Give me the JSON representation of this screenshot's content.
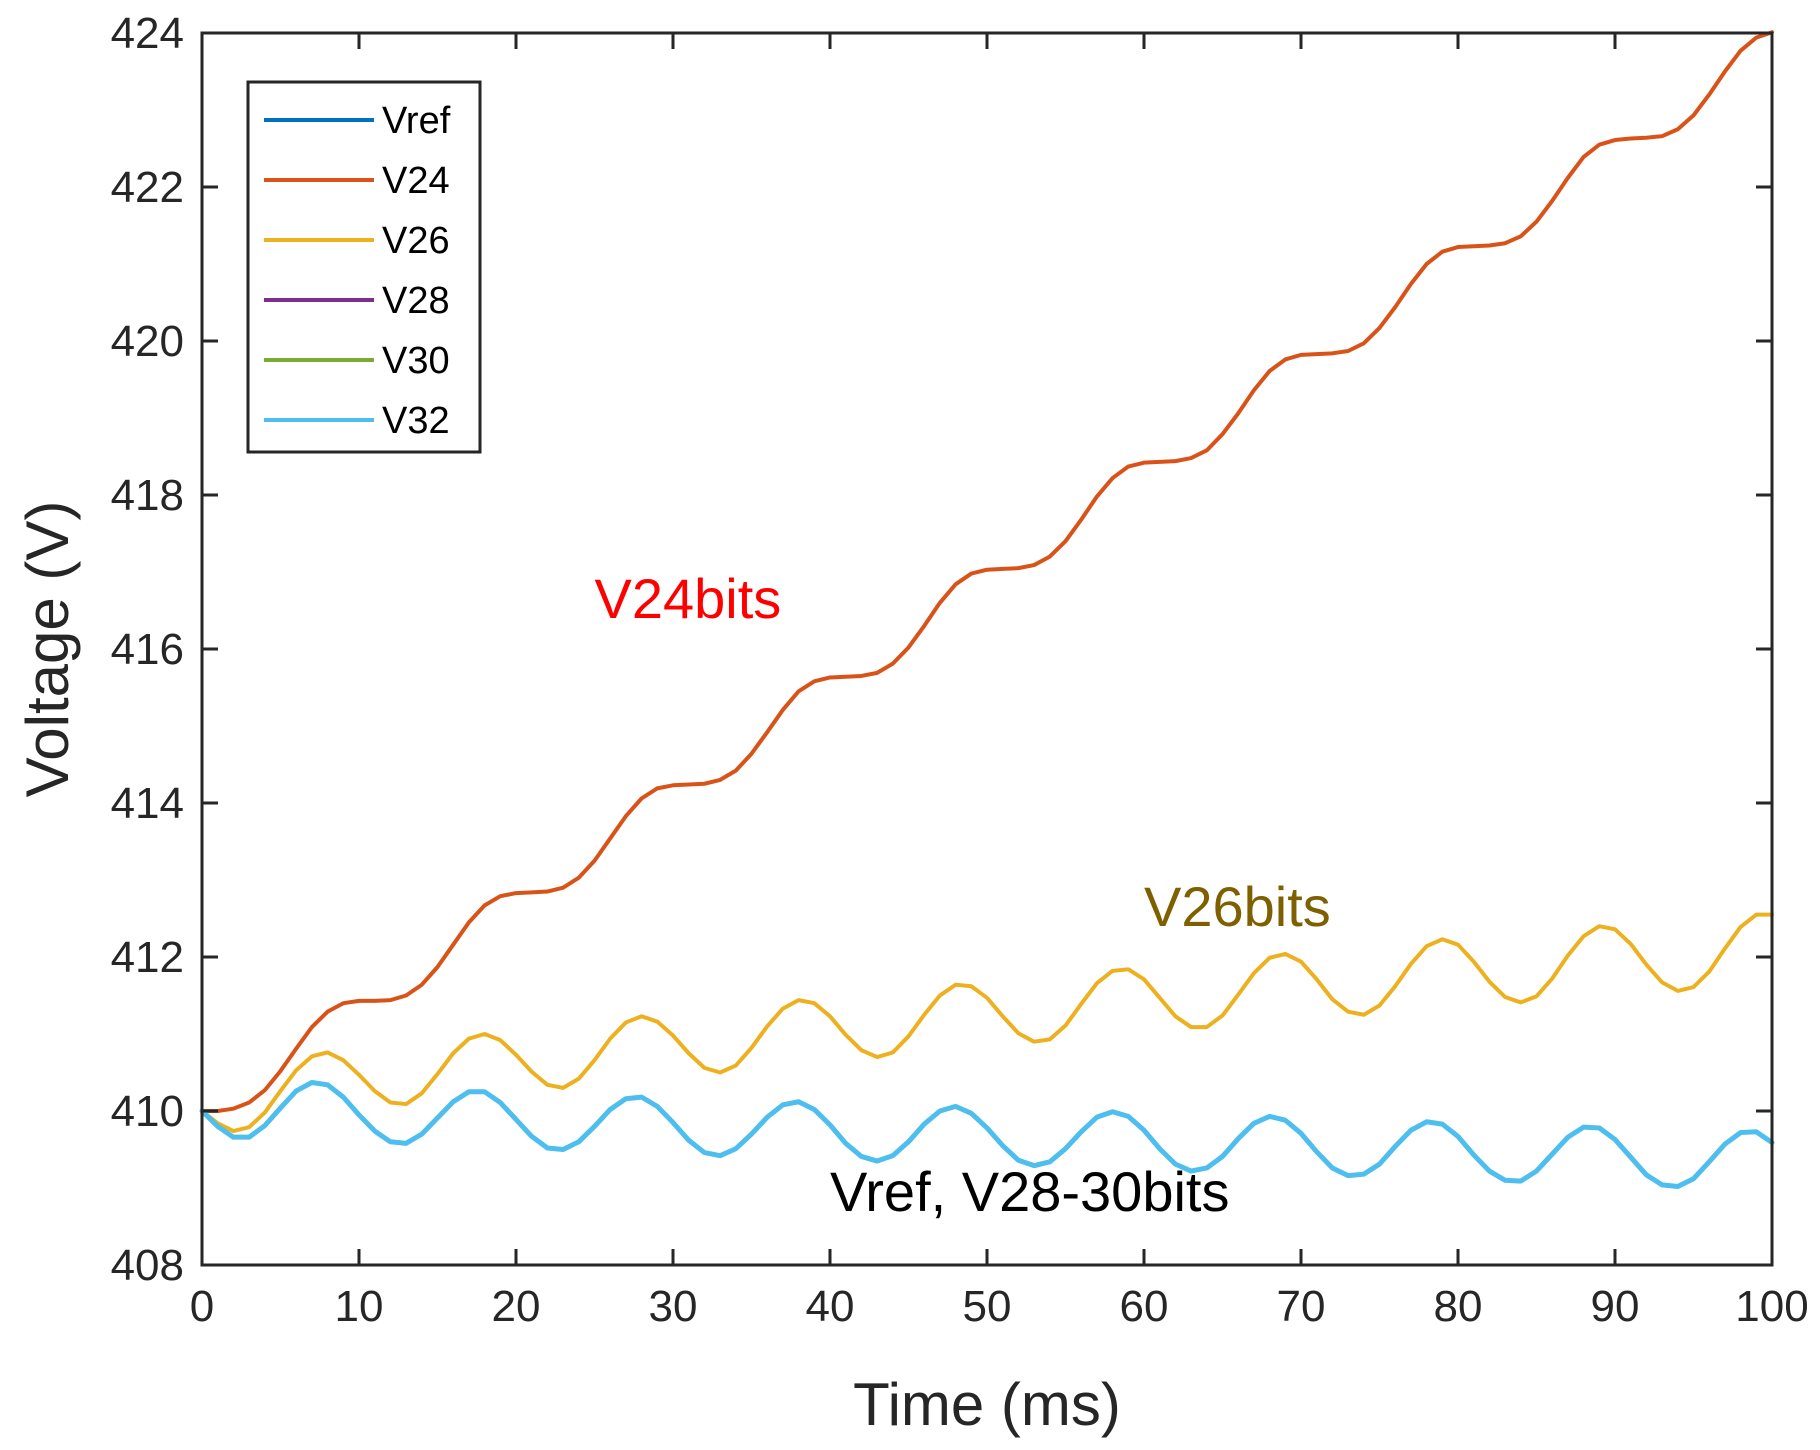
{
  "chart_data": {
    "type": "line",
    "title": "",
    "xlabel": "Time (ms)",
    "ylabel": "Voltage (V)",
    "xlim": [
      0,
      100
    ],
    "ylim": [
      408,
      424
    ],
    "xticks": [
      0,
      10,
      20,
      30,
      40,
      50,
      60,
      70,
      80,
      90,
      100
    ],
    "yticks": [
      408,
      410,
      412,
      414,
      416,
      418,
      420,
      422,
      424
    ],
    "grid": false,
    "legend_position": "top-left",
    "x": [
      0,
      1,
      2,
      3,
      4,
      5,
      6,
      7,
      8,
      9,
      10,
      11,
      12,
      13,
      14,
      15,
      16,
      17,
      18,
      19,
      20,
      21,
      22,
      23,
      24,
      25,
      26,
      27,
      28,
      29,
      30,
      31,
      32,
      33,
      34,
      35,
      36,
      37,
      38,
      39,
      40,
      41,
      42,
      43,
      44,
      45,
      46,
      47,
      48,
      49,
      50,
      51,
      52,
      53,
      54,
      55,
      56,
      57,
      58,
      59,
      60,
      61,
      62,
      63,
      64,
      65,
      66,
      67,
      68,
      69,
      70,
      71,
      72,
      73,
      74,
      75,
      76,
      77,
      78,
      79,
      80,
      81,
      82,
      83,
      84,
      85,
      86,
      87,
      88,
      89,
      90,
      91,
      92,
      93,
      94,
      95,
      96,
      97,
      98,
      99,
      100
    ],
    "series": [
      {
        "name": "Vref",
        "color": "#0072BD",
        "values": [
          410.0,
          409.8,
          409.66,
          409.66,
          409.81,
          410.04,
          410.26,
          410.37,
          410.34,
          410.18,
          409.95,
          409.74,
          409.6,
          409.58,
          409.7,
          409.91,
          410.12,
          410.25,
          410.25,
          410.11,
          409.89,
          409.67,
          409.52,
          409.5,
          409.6,
          409.8,
          410.02,
          410.16,
          410.18,
          410.06,
          409.85,
          409.62,
          409.46,
          409.42,
          409.51,
          409.7,
          409.92,
          410.08,
          410.12,
          410.02,
          409.82,
          409.58,
          409.41,
          409.35,
          409.42,
          409.6,
          409.83,
          410.0,
          410.06,
          409.97,
          409.78,
          409.55,
          409.36,
          409.29,
          409.34,
          409.51,
          409.73,
          409.92,
          409.99,
          409.93,
          409.75,
          409.51,
          409.31,
          409.22,
          409.26,
          409.41,
          409.64,
          409.84,
          409.93,
          409.88,
          409.71,
          409.47,
          409.26,
          409.16,
          409.18,
          409.31,
          409.54,
          409.75,
          409.86,
          409.83,
          409.67,
          409.43,
          409.22,
          409.1,
          409.09,
          409.22,
          409.44,
          409.66,
          409.79,
          409.78,
          409.63,
          409.4,
          409.17,
          409.04,
          409.02,
          409.12,
          409.34,
          409.57,
          409.72,
          409.73,
          409.59
        ]
      },
      {
        "name": "V24",
        "color": "#D95319",
        "values": [
          410.0,
          410.0,
          410.03,
          410.11,
          410.27,
          410.52,
          410.81,
          411.09,
          411.29,
          411.4,
          411.43,
          411.43,
          411.44,
          411.5,
          411.64,
          411.87,
          412.16,
          412.45,
          412.67,
          412.79,
          412.83,
          412.84,
          412.85,
          412.9,
          413.03,
          413.25,
          413.54,
          413.83,
          414.06,
          414.19,
          414.23,
          414.24,
          414.25,
          414.3,
          414.42,
          414.64,
          414.92,
          415.21,
          415.45,
          415.58,
          415.63,
          415.64,
          415.65,
          415.69,
          415.81,
          416.02,
          416.3,
          416.6,
          416.84,
          416.98,
          417.03,
          417.04,
          417.05,
          417.09,
          417.2,
          417.4,
          417.68,
          417.98,
          418.22,
          418.37,
          418.42,
          418.43,
          418.44,
          418.48,
          418.58,
          418.79,
          419.06,
          419.36,
          419.61,
          419.76,
          419.82,
          419.83,
          419.84,
          419.87,
          419.97,
          420.17,
          420.44,
          420.74,
          421.0,
          421.16,
          421.22,
          421.23,
          421.24,
          421.27,
          421.36,
          421.55,
          421.82,
          422.12,
          422.39,
          422.55,
          422.61,
          422.63,
          422.64,
          422.66,
          422.75,
          422.93,
          423.2,
          423.5,
          423.77,
          423.94,
          424.01
        ]
      },
      {
        "name": "V26",
        "color": "#EDB120",
        "values": [
          410.0,
          409.84,
          409.74,
          409.79,
          409.98,
          410.26,
          410.53,
          410.71,
          410.76,
          410.66,
          410.47,
          410.26,
          410.11,
          410.09,
          410.23,
          410.48,
          410.75,
          410.94,
          411.0,
          410.92,
          410.73,
          410.51,
          410.34,
          410.3,
          410.42,
          410.66,
          410.94,
          411.15,
          411.23,
          411.16,
          410.98,
          410.75,
          410.56,
          410.5,
          410.59,
          410.82,
          411.1,
          411.33,
          411.44,
          411.4,
          411.23,
          410.99,
          410.79,
          410.7,
          410.76,
          410.97,
          411.25,
          411.5,
          411.64,
          411.62,
          411.47,
          411.23,
          411.01,
          410.9,
          410.93,
          411.11,
          411.39,
          411.66,
          411.82,
          411.84,
          411.71,
          411.47,
          411.23,
          411.09,
          411.09,
          411.24,
          411.51,
          411.79,
          411.99,
          412.04,
          411.94,
          411.71,
          411.45,
          411.29,
          411.25,
          411.37,
          411.62,
          411.91,
          412.14,
          412.23,
          412.16,
          411.94,
          411.68,
          411.48,
          411.41,
          411.49,
          411.72,
          412.02,
          412.27,
          412.4,
          412.36,
          412.17,
          411.9,
          411.67,
          411.56,
          411.61,
          411.81,
          412.11,
          412.39,
          412.55,
          412.55
        ]
      },
      {
        "name": "V28",
        "color": "#7E2F8E",
        "values": [
          410.0,
          409.8,
          409.66,
          409.66,
          409.81,
          410.04,
          410.26,
          410.37,
          410.34,
          410.18,
          409.95,
          409.74,
          409.6,
          409.58,
          409.7,
          409.91,
          410.12,
          410.25,
          410.25,
          410.11,
          409.89,
          409.67,
          409.52,
          409.5,
          409.6,
          409.8,
          410.02,
          410.16,
          410.18,
          410.06,
          409.85,
          409.62,
          409.46,
          409.42,
          409.51,
          409.7,
          409.92,
          410.08,
          410.12,
          410.02,
          409.82,
          409.58,
          409.41,
          409.35,
          409.42,
          409.6,
          409.83,
          410.0,
          410.06,
          409.97,
          409.78,
          409.55,
          409.36,
          409.29,
          409.34,
          409.51,
          409.73,
          409.92,
          409.99,
          409.93,
          409.75,
          409.51,
          409.31,
          409.22,
          409.26,
          409.41,
          409.64,
          409.84,
          409.93,
          409.88,
          409.71,
          409.47,
          409.26,
          409.16,
          409.18,
          409.31,
          409.54,
          409.75,
          409.86,
          409.83,
          409.67,
          409.43,
          409.22,
          409.1,
          409.09,
          409.22,
          409.44,
          409.66,
          409.79,
          409.78,
          409.63,
          409.4,
          409.17,
          409.04,
          409.02,
          409.12,
          409.34,
          409.57,
          409.72,
          409.73,
          409.59
        ]
      },
      {
        "name": "V30",
        "color": "#77AC30",
        "values": [
          410.0,
          409.8,
          409.66,
          409.66,
          409.81,
          410.04,
          410.26,
          410.37,
          410.34,
          410.18,
          409.95,
          409.74,
          409.6,
          409.58,
          409.7,
          409.91,
          410.12,
          410.25,
          410.25,
          410.11,
          409.89,
          409.67,
          409.52,
          409.5,
          409.6,
          409.8,
          410.02,
          410.16,
          410.18,
          410.06,
          409.85,
          409.62,
          409.46,
          409.42,
          409.51,
          409.7,
          409.92,
          410.08,
          410.12,
          410.02,
          409.82,
          409.58,
          409.41,
          409.35,
          409.42,
          409.6,
          409.83,
          410.0,
          410.06,
          409.97,
          409.78,
          409.55,
          409.36,
          409.29,
          409.34,
          409.51,
          409.73,
          409.92,
          409.99,
          409.93,
          409.75,
          409.51,
          409.31,
          409.22,
          409.26,
          409.41,
          409.64,
          409.84,
          409.93,
          409.88,
          409.71,
          409.47,
          409.26,
          409.16,
          409.18,
          409.31,
          409.54,
          409.75,
          409.86,
          409.83,
          409.67,
          409.43,
          409.22,
          409.1,
          409.09,
          409.22,
          409.44,
          409.66,
          409.79,
          409.78,
          409.63,
          409.4,
          409.17,
          409.04,
          409.02,
          409.12,
          409.34,
          409.57,
          409.72,
          409.73,
          409.59
        ]
      },
      {
        "name": "V32",
        "color": "#4DBEEE",
        "values": [
          410.0,
          409.8,
          409.66,
          409.66,
          409.81,
          410.04,
          410.26,
          410.37,
          410.34,
          410.18,
          409.95,
          409.74,
          409.6,
          409.58,
          409.7,
          409.91,
          410.12,
          410.25,
          410.25,
          410.11,
          409.89,
          409.67,
          409.52,
          409.5,
          409.6,
          409.8,
          410.02,
          410.16,
          410.18,
          410.06,
          409.85,
          409.62,
          409.46,
          409.42,
          409.51,
          409.7,
          409.92,
          410.08,
          410.12,
          410.02,
          409.82,
          409.58,
          409.41,
          409.35,
          409.42,
          409.6,
          409.83,
          410.0,
          410.06,
          409.97,
          409.78,
          409.55,
          409.36,
          409.29,
          409.34,
          409.51,
          409.73,
          409.92,
          409.99,
          409.93,
          409.75,
          409.51,
          409.31,
          409.22,
          409.26,
          409.41,
          409.64,
          409.84,
          409.93,
          409.88,
          409.71,
          409.47,
          409.26,
          409.16,
          409.18,
          409.31,
          409.54,
          409.75,
          409.86,
          409.83,
          409.67,
          409.43,
          409.22,
          409.1,
          409.09,
          409.22,
          409.44,
          409.66,
          409.79,
          409.78,
          409.63,
          409.4,
          409.17,
          409.04,
          409.02,
          409.12,
          409.34,
          409.57,
          409.72,
          409.73,
          409.59
        ]
      }
    ],
    "annotations": [
      {
        "text": "V24bits",
        "color": "#FF0000",
        "x": 25.0,
        "y": 416.4
      },
      {
        "text": "V26bits",
        "color": "#7F6000",
        "x": 60.0,
        "y": 412.4
      },
      {
        "text": "Vref, V28-30bits",
        "color": "#000000",
        "x": 40.0,
        "y": 408.7
      }
    ]
  }
}
